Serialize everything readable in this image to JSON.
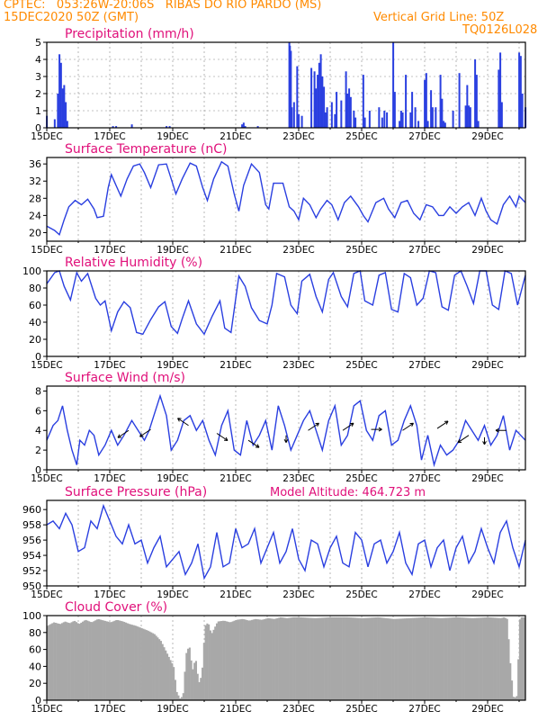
{
  "header": {
    "line1": "CPTEC:   053:26W-20:06S   RIBAS DO RIO PARDO (MS)",
    "line2": "15DEC2020 50Z (GMT)",
    "grid_note": "Vertical Grid Line: 50Z",
    "code": "TQ0126L028"
  },
  "colors": {
    "title": "#e0107a",
    "series": "#2a3fe0",
    "header": "#ff8a00",
    "cloud": "#a8a8a8",
    "gridline": "#888888"
  },
  "x_ticks": [
    "15DEC",
    "17DEC",
    "19DEC",
    "21DEC",
    "23DEC",
    "25DEC",
    "27DEC",
    "29DEC"
  ],
  "chart_data": [
    {
      "type": "bar",
      "title": "Precipitation  (mm/h)",
      "ylim": [
        0,
        5
      ],
      "yticks": [
        0,
        1,
        2,
        3,
        4,
        5
      ],
      "grid": true,
      "x": [
        0.0,
        0.25,
        0.35,
        0.4,
        0.45,
        0.5,
        0.55,
        0.6,
        0.65,
        2.1,
        2.2,
        2.7,
        3.8,
        3.9,
        6.2,
        6.25,
        6.3,
        6.7,
        7.7,
        7.72,
        7.75,
        7.78,
        7.85,
        7.95,
        8.0,
        8.1,
        8.4,
        8.5,
        8.55,
        8.6,
        8.65,
        8.7,
        8.75,
        8.8,
        8.85,
        8.9,
        9.05,
        9.15,
        9.2,
        9.35,
        9.5,
        9.55,
        9.6,
        9.65,
        9.75,
        9.8,
        10.05,
        10.1,
        10.25,
        10.55,
        10.65,
        10.72,
        10.8,
        11.0,
        11.05,
        11.2,
        11.25,
        11.3,
        11.4,
        11.55,
        11.6,
        11.7,
        11.8,
        12.0,
        12.05,
        12.1,
        12.2,
        12.25,
        12.35,
        12.5,
        12.55,
        12.6,
        12.65,
        12.9,
        13.1,
        13.3,
        13.35,
        13.4,
        13.45,
        13.6,
        13.65,
        13.7,
        14.35,
        14.4,
        14.45,
        15.0,
        15.05,
        15.1,
        15.2
      ],
      "values": [
        0.7,
        0.5,
        2.0,
        4.3,
        3.8,
        2.3,
        2.5,
        1.5,
        0.4,
        0.1,
        0.1,
        0.2,
        0.1,
        0.1,
        0.2,
        0.3,
        0.1,
        0.1,
        5.0,
        4.8,
        4.5,
        1.2,
        1.5,
        3.6,
        0.8,
        0.7,
        3.5,
        3.3,
        2.3,
        3.1,
        3.8,
        4.3,
        3.0,
        2.4,
        0.9,
        1.2,
        1.5,
        0.8,
        2.1,
        1.6,
        3.3,
        2.0,
        2.3,
        1.8,
        1.0,
        0.6,
        3.1,
        0.6,
        1.0,
        1.2,
        0.6,
        1.0,
        0.9,
        5.0,
        2.1,
        0.4,
        1.0,
        0.9,
        3.1,
        0.9,
        2.1,
        1.2,
        0.4,
        2.8,
        3.2,
        0.4,
        2.2,
        1.2,
        1.2,
        3.1,
        1.7,
        0.4,
        0.3,
        1.0,
        3.2,
        1.3,
        2.5,
        1.3,
        1.2,
        4.0,
        3.1,
        0.4,
        3.4,
        4.4,
        1.5,
        4.4,
        4.2,
        2.0,
        1.2
      ]
    },
    {
      "type": "line",
      "title": "Surface Temperature (nC)",
      "ylim": [
        18,
        37.5
      ],
      "yticks": [
        20,
        24,
        28,
        32,
        36
      ],
      "x": [
        0.0,
        0.25,
        0.4,
        0.55,
        0.7,
        0.9,
        1.1,
        1.3,
        1.5,
        1.6,
        1.8,
        1.95,
        2.05,
        2.2,
        2.35,
        2.55,
        2.75,
        2.95,
        3.1,
        3.3,
        3.55,
        3.8,
        3.95,
        4.1,
        4.3,
        4.55,
        4.75,
        4.95,
        5.1,
        5.3,
        5.55,
        5.75,
        5.95,
        6.1,
        6.25,
        6.5,
        6.75,
        6.95,
        7.05,
        7.2,
        7.5,
        7.7,
        7.85,
        8.0,
        8.15,
        8.35,
        8.55,
        8.7,
        8.9,
        9.05,
        9.25,
        9.45,
        9.65,
        9.9,
        10.05,
        10.2,
        10.45,
        10.7,
        10.85,
        11.05,
        11.25,
        11.45,
        11.65,
        11.85,
        12.05,
        12.25,
        12.45,
        12.6,
        12.8,
        13.0,
        13.2,
        13.4,
        13.6,
        13.8,
        13.95,
        14.1,
        14.3,
        14.5,
        14.7,
        14.9,
        15.0,
        15.2
      ],
      "values": [
        21.5,
        20.5,
        19.5,
        23.0,
        26.0,
        27.5,
        26.5,
        27.8,
        25.5,
        23.5,
        23.8,
        30.5,
        33.5,
        31.0,
        28.5,
        32.5,
        35.5,
        36.0,
        34.0,
        30.5,
        35.8,
        36.0,
        32.5,
        29.0,
        32.5,
        36.2,
        35.5,
        30.5,
        27.5,
        32.5,
        36.5,
        35.5,
        29.0,
        25.0,
        31.0,
        36.0,
        34.0,
        26.5,
        25.5,
        31.5,
        31.5,
        26.0,
        25.0,
        23.0,
        28.0,
        26.5,
        23.5,
        25.5,
        27.5,
        26.5,
        23.0,
        27.0,
        28.5,
        26.0,
        24.0,
        22.5,
        27.0,
        28.0,
        25.5,
        23.5,
        27.0,
        27.5,
        24.5,
        23.0,
        26.5,
        26.0,
        24.0,
        24.0,
        26.0,
        24.5,
        26.0,
        27.0,
        24.0,
        28.0,
        25.0,
        23.0,
        22.0,
        26.5,
        28.5,
        26.0,
        28.5,
        27.0
      ]
    },
    {
      "type": "line",
      "title": "Relative Humidity (%)",
      "ylim": [
        0,
        100
      ],
      "yticks": [
        0,
        20,
        40,
        60,
        80,
        100
      ],
      "x": [
        0.0,
        0.25,
        0.4,
        0.55,
        0.75,
        0.95,
        1.1,
        1.3,
        1.55,
        1.7,
        1.85,
        2.05,
        2.25,
        2.45,
        2.65,
        2.85,
        3.05,
        3.3,
        3.55,
        3.75,
        3.95,
        4.15,
        4.3,
        4.5,
        4.75,
        5.0,
        5.25,
        5.5,
        5.65,
        5.85,
        6.1,
        6.3,
        6.5,
        6.75,
        7.0,
        7.15,
        7.3,
        7.55,
        7.75,
        7.95,
        8.1,
        8.35,
        8.55,
        8.75,
        8.95,
        9.1,
        9.35,
        9.55,
        9.75,
        9.95,
        10.1,
        10.35,
        10.55,
        10.75,
        10.95,
        11.15,
        11.35,
        11.55,
        11.75,
        11.95,
        12.15,
        12.35,
        12.55,
        12.75,
        12.95,
        13.15,
        13.35,
        13.55,
        13.75,
        13.95,
        14.15,
        14.35,
        14.55,
        14.75,
        14.95,
        15.2
      ],
      "values": [
        85,
        98,
        100,
        82,
        66,
        98,
        88,
        97,
        68,
        60,
        65,
        30,
        52,
        64,
        57,
        28,
        26,
        43,
        58,
        64,
        35,
        27,
        44,
        65,
        38,
        26,
        47,
        65,
        33,
        28,
        94,
        82,
        57,
        42,
        38,
        60,
        97,
        93,
        60,
        50,
        88,
        96,
        70,
        52,
        90,
        98,
        70,
        58,
        97,
        100,
        65,
        60,
        95,
        98,
        55,
        52,
        97,
        92,
        60,
        68,
        100,
        98,
        58,
        54,
        95,
        100,
        82,
        62,
        100,
        100,
        60,
        55,
        100,
        97,
        60,
        95
      ]
    },
    {
      "type": "line",
      "title": "Surface Wind (m/s)",
      "ylim": [
        0,
        8.5
      ],
      "yticks": [
        0,
        2,
        4,
        6,
        8
      ],
      "x": [
        0.0,
        0.2,
        0.35,
        0.5,
        0.65,
        0.8,
        0.95,
        1.05,
        1.2,
        1.35,
        1.5,
        1.65,
        1.85,
        2.05,
        2.25,
        2.45,
        2.7,
        2.9,
        3.1,
        3.25,
        3.4,
        3.6,
        3.8,
        3.95,
        4.15,
        4.35,
        4.55,
        4.75,
        4.95,
        5.15,
        5.35,
        5.55,
        5.75,
        5.95,
        6.15,
        6.35,
        6.55,
        6.75,
        6.95,
        7.15,
        7.35,
        7.55,
        7.75,
        7.95,
        8.15,
        8.35,
        8.55,
        8.75,
        8.95,
        9.15,
        9.35,
        9.55,
        9.75,
        9.95,
        10.15,
        10.35,
        10.55,
        10.75,
        10.95,
        11.15,
        11.35,
        11.55,
        11.75,
        11.9,
        12.1,
        12.3,
        12.5,
        12.7,
        12.9,
        13.1,
        13.3,
        13.5,
        13.7,
        13.9,
        14.1,
        14.3,
        14.5,
        14.7,
        14.9,
        15.2
      ],
      "values": [
        3.0,
        4.5,
        5.0,
        6.5,
        4.0,
        2.0,
        0.5,
        3.0,
        2.5,
        4.0,
        3.5,
        1.5,
        2.5,
        4.0,
        2.5,
        3.5,
        5.0,
        4.0,
        3.0,
        4.0,
        5.5,
        7.5,
        5.5,
        2.0,
        3.0,
        5.0,
        5.5,
        4.0,
        5.0,
        3.0,
        1.5,
        4.5,
        6.0,
        2.0,
        1.5,
        5.0,
        2.5,
        3.5,
        5.0,
        2.0,
        6.5,
        4.5,
        2.0,
        3.5,
        5.0,
        6.0,
        4.0,
        2.0,
        5.0,
        6.5,
        2.5,
        3.5,
        6.5,
        7.0,
        4.0,
        3.0,
        5.5,
        6.0,
        2.5,
        3.0,
        5.0,
        6.5,
        4.5,
        1.0,
        3.5,
        0.5,
        2.5,
        1.5,
        2.0,
        3.0,
        5.0,
        4.0,
        3.0,
        4.5,
        2.5,
        3.5,
        5.5,
        2.0,
        4.0,
        3.0
      ]
    },
    {
      "type": "line",
      "title": "Surface Pressure (hPa)",
      "annotation": "Model Altitude: 464.723  m",
      "ylim": [
        950,
        961.2
      ],
      "yticks": [
        950,
        952,
        954,
        956,
        958,
        960
      ],
      "x": [
        0.0,
        0.2,
        0.4,
        0.6,
        0.8,
        1.0,
        1.2,
        1.4,
        1.6,
        1.8,
        2.0,
        2.2,
        2.4,
        2.6,
        2.8,
        3.0,
        3.2,
        3.4,
        3.6,
        3.8,
        4.0,
        4.2,
        4.4,
        4.6,
        4.8,
        5.0,
        5.2,
        5.4,
        5.6,
        5.8,
        6.0,
        6.2,
        6.4,
        6.6,
        6.8,
        7.0,
        7.2,
        7.4,
        7.6,
        7.8,
        8.0,
        8.2,
        8.4,
        8.6,
        8.8,
        9.0,
        9.2,
        9.4,
        9.6,
        9.8,
        10.0,
        10.2,
        10.4,
        10.6,
        10.8,
        11.0,
        11.2,
        11.4,
        11.6,
        11.8,
        12.0,
        12.2,
        12.4,
        12.6,
        12.8,
        13.0,
        13.2,
        13.4,
        13.6,
        13.8,
        14.0,
        14.2,
        14.4,
        14.6,
        14.8,
        15.0,
        15.2
      ],
      "values": [
        958,
        958.5,
        957.5,
        959.5,
        958.0,
        954.5,
        955.0,
        958.5,
        957.5,
        960.5,
        958.5,
        956.5,
        955.5,
        958.0,
        955.5,
        956.0,
        953.0,
        955.0,
        956.5,
        952.5,
        953.5,
        954.5,
        951.5,
        953.0,
        955.5,
        951.0,
        952.5,
        957.0,
        952.5,
        953.0,
        957.5,
        955.0,
        955.5,
        957.5,
        953.0,
        955.0,
        957.0,
        953.0,
        954.5,
        957.5,
        953.5,
        952.0,
        956.0,
        955.5,
        952.5,
        955.0,
        956.5,
        953.0,
        952.5,
        957.0,
        956.0,
        952.5,
        955.5,
        956.0,
        953.0,
        954.5,
        957.0,
        953.0,
        951.5,
        955.5,
        956.0,
        952.5,
        955.0,
        956.0,
        952.0,
        955.0,
        956.5,
        953.0,
        954.5,
        957.5,
        955.0,
        953.0,
        957.0,
        958.5,
        955.0,
        952.5,
        956.0
      ]
    },
    {
      "type": "area",
      "title": "Cloud Cover (%)",
      "ylim": [
        0,
        100
      ],
      "yticks": [
        0,
        20,
        40,
        60,
        80,
        100
      ],
      "x": [
        0.0,
        0.2,
        0.4,
        0.55,
        0.7,
        0.85,
        1.0,
        1.2,
        1.4,
        1.6,
        1.8,
        2.0,
        2.2,
        2.4,
        2.6,
        2.8,
        3.0,
        3.2,
        3.4,
        3.6,
        3.8,
        4.0,
        4.1,
        4.2,
        4.3,
        4.4,
        4.5,
        4.6,
        4.7,
        4.8,
        4.9,
        5.0,
        5.1,
        5.2,
        5.4,
        5.6,
        5.8,
        6.0,
        6.2,
        6.4,
        6.6,
        6.8,
        7.0,
        7.2,
        7.4,
        7.6,
        7.8,
        8.0,
        8.5,
        9.0,
        9.5,
        10.0,
        10.5,
        11.0,
        11.5,
        12.0,
        12.5,
        13.0,
        13.5,
        14.0,
        14.4,
        14.5,
        14.6,
        14.7,
        14.8,
        14.9,
        15.0,
        15.2
      ],
      "values": [
        88,
        92,
        90,
        93,
        91,
        94,
        90,
        95,
        92,
        96,
        94,
        92,
        95,
        93,
        90,
        88,
        85,
        82,
        78,
        70,
        55,
        40,
        10,
        2,
        5,
        55,
        65,
        35,
        50,
        20,
        30,
        88,
        92,
        78,
        93,
        94,
        92,
        95,
        96,
        94,
        96,
        95,
        97,
        96,
        98,
        97,
        98,
        98,
        97,
        98,
        98,
        97,
        98,
        96,
        97,
        98,
        97,
        98,
        97,
        98,
        97,
        98,
        96,
        40,
        2,
        5,
        98,
        98
      ]
    }
  ]
}
